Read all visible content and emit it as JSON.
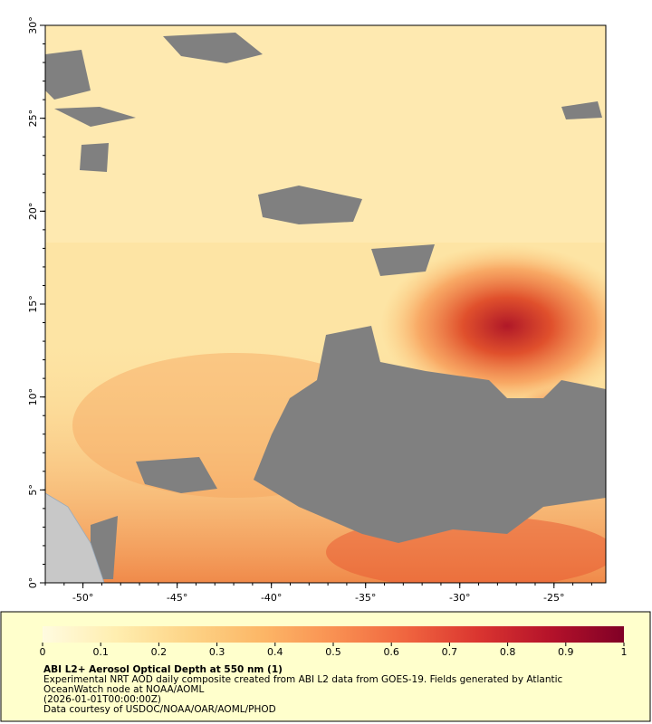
{
  "map": {
    "lonlim": [
      -52,
      -22.25
    ],
    "latlim": [
      0,
      30
    ],
    "lon_ticks": [
      {
        "value": -50,
        "label": "-50°"
      },
      {
        "value": -45,
        "label": "-45°"
      },
      {
        "value": -40,
        "label": "-40°"
      },
      {
        "value": -35,
        "label": "-35°"
      },
      {
        "value": -30,
        "label": "-30°"
      },
      {
        "value": -25,
        "label": "-25°"
      }
    ],
    "lat_ticks": [
      {
        "value": 0,
        "label": "0°"
      },
      {
        "value": 5,
        "label": "5°"
      },
      {
        "value": 10,
        "label": "10°"
      },
      {
        "value": 15,
        "label": "15°"
      },
      {
        "value": 20,
        "label": "20°"
      },
      {
        "value": 25,
        "label": "25°"
      },
      {
        "value": 30,
        "label": "30°"
      }
    ]
  },
  "colorbar": {
    "range": [
      0,
      1
    ],
    "ticks": [
      0,
      0.1,
      0.2,
      0.3,
      0.4,
      0.5,
      0.6,
      0.7,
      0.8,
      0.9,
      1
    ],
    "colormap": [
      "#fffbe0",
      "#ffeeb0",
      "#fdd487",
      "#fcb767",
      "#f99152",
      "#f0653f",
      "#da3530",
      "#b4122a",
      "#800026"
    ]
  },
  "caption": {
    "title": "ABI L2+ Aerosol Optical Depth at 550 nm (1)",
    "lines": [
      "Experimental NRT AOD daily composite created from ABI L2 data from GOES-19. Fields generated by Atlantic",
      "OceanWatch node at NOAA/AOML",
      "(2026-01-01T00:00:00Z)",
      "Data courtesy of USDOC/NOAA/OAR/AOML/PHOD"
    ]
  }
}
